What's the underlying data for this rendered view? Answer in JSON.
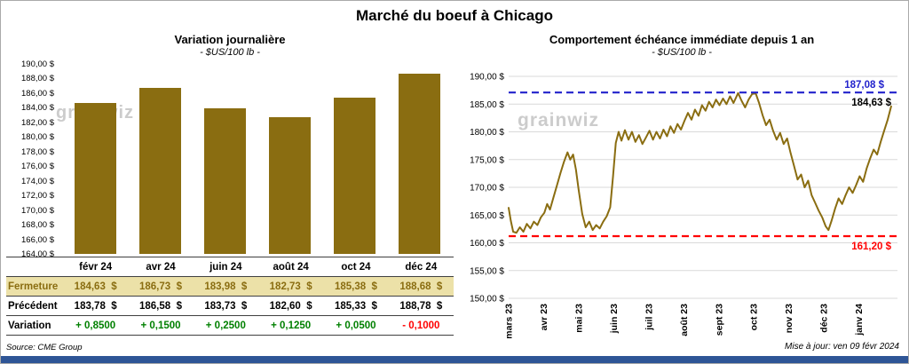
{
  "title": "Marché du boeuf à Chicago",
  "watermark": "grainwiz",
  "colors": {
    "gold": "#8a6d11",
    "fermeture_bg": "#ece1a8",
    "positive": "#008000",
    "negative": "#ff0000",
    "high_line": "#2222cc",
    "low_line": "#ff0000",
    "grid": "#d9d9d9",
    "watermark": "#cccccc",
    "bottom_bar": "#2e5596"
  },
  "left": {
    "title": "Variation journalière",
    "subtitle": "- $US/100 lb -",
    "source": "Source: CME Group",
    "table": {
      "header": [
        "févr 24",
        "avr 24",
        "juin 24",
        "août 24",
        "oct 24",
        "déc 24"
      ],
      "rows": [
        {
          "key": "fermeture",
          "label": "Fermeture",
          "bg": "#ece1a8",
          "color": "#8a6d11",
          "values": [
            "184,63  $",
            "186,73  $",
            "183,98  $",
            "182,73  $",
            "185,38  $",
            "188,68  $"
          ]
        },
        {
          "key": "precedent",
          "label": "Précédent",
          "values": [
            "183,78  $",
            "186,58  $",
            "183,73  $",
            "182,60  $",
            "185,33  $",
            "188,78  $"
          ]
        },
        {
          "key": "variation",
          "label": "Variation",
          "values": [
            "+ 0,8500",
            "+ 0,1500",
            "+ 0,2500",
            "+ 0,1250",
            "+ 0,0500",
            "- 0,1000"
          ],
          "value_colors": [
            "#008000",
            "#008000",
            "#008000",
            "#008000",
            "#008000",
            "#ff0000"
          ]
        }
      ]
    }
  },
  "right": {
    "title": "Comportement échéance immédiate depuis 1 an",
    "subtitle": "- $US/100 lb -",
    "updated": "Mise à jour: ven 09 févr 2024"
  },
  "chart_data": [
    {
      "type": "bar",
      "title": "Variation journalière",
      "unit": "$US/100 lb",
      "categories": [
        "févr 24",
        "avr 24",
        "juin 24",
        "août 24",
        "oct 24",
        "déc 24"
      ],
      "values": [
        184.63,
        186.73,
        183.98,
        182.73,
        185.38,
        188.68
      ],
      "ylim": [
        164,
        190
      ],
      "ytick_step": 2,
      "bar_color": "#8a6d11"
    },
    {
      "type": "line",
      "title": "Comportement échéance immédiate depuis 1 an",
      "unit": "$US/100 lb",
      "x_labels": [
        "mars 23",
        "avr 23",
        "mai 23",
        "juin 23",
        "juil 23",
        "août 23",
        "sept 23",
        "oct 23",
        "nov 23",
        "déc 23",
        "janv 24"
      ],
      "x_span": 11.1,
      "ylim": [
        150,
        190
      ],
      "ytick_step": 5,
      "line_color": "#8a6d11",
      "grid": true,
      "hlines": [
        {
          "name": "high-line",
          "value": 187.08,
          "color": "#2222cc",
          "label": "187,08 $",
          "label_position": "above"
        },
        {
          "name": "low-line",
          "value": 161.2,
          "color": "#ff0000",
          "label": "161,20 $",
          "label_position": "below"
        }
      ],
      "current_label": {
        "text": "184,63 $",
        "color": "#000000"
      },
      "points": [
        [
          0,
          166.3
        ],
        [
          0.06,
          164
        ],
        [
          0.13,
          162
        ],
        [
          0.22,
          161.8
        ],
        [
          0.32,
          162.8
        ],
        [
          0.42,
          162
        ],
        [
          0.52,
          163.4
        ],
        [
          0.62,
          162.6
        ],
        [
          0.72,
          163.8
        ],
        [
          0.82,
          163.2
        ],
        [
          0.92,
          164.6
        ],
        [
          1.02,
          165.4
        ],
        [
          1.1,
          167
        ],
        [
          1.18,
          166
        ],
        [
          1.28,
          168.2
        ],
        [
          1.38,
          170.4
        ],
        [
          1.48,
          172.6
        ],
        [
          1.58,
          174.6
        ],
        [
          1.68,
          176.3
        ],
        [
          1.76,
          175
        ],
        [
          1.84,
          175.9
        ],
        [
          1.92,
          173.2
        ],
        [
          2,
          169.5
        ],
        [
          2.1,
          165.2
        ],
        [
          2.2,
          162.8
        ],
        [
          2.3,
          163.8
        ],
        [
          2.4,
          162.3
        ],
        [
          2.5,
          163.2
        ],
        [
          2.6,
          162.6
        ],
        [
          2.7,
          163.8
        ],
        [
          2.8,
          164.8
        ],
        [
          2.9,
          166.4
        ],
        [
          2.98,
          172
        ],
        [
          3.06,
          178
        ],
        [
          3.14,
          180
        ],
        [
          3.22,
          178.4
        ],
        [
          3.32,
          180.3
        ],
        [
          3.42,
          178.6
        ],
        [
          3.52,
          180
        ],
        [
          3.62,
          178.2
        ],
        [
          3.72,
          179.4
        ],
        [
          3.82,
          177.8
        ],
        [
          3.92,
          179
        ],
        [
          4.02,
          180.2
        ],
        [
          4.12,
          178.6
        ],
        [
          4.22,
          180
        ],
        [
          4.32,
          178.8
        ],
        [
          4.42,
          180.4
        ],
        [
          4.52,
          179.2
        ],
        [
          4.62,
          181
        ],
        [
          4.72,
          179.8
        ],
        [
          4.82,
          181.4
        ],
        [
          4.92,
          180.4
        ],
        [
          5.02,
          182
        ],
        [
          5.12,
          183.4
        ],
        [
          5.22,
          182.2
        ],
        [
          5.32,
          184
        ],
        [
          5.42,
          182.9
        ],
        [
          5.52,
          184.8
        ],
        [
          5.62,
          183.8
        ],
        [
          5.72,
          185.4
        ],
        [
          5.82,
          184.4
        ],
        [
          5.92,
          185.8
        ],
        [
          6.02,
          184.8
        ],
        [
          6.12,
          186
        ],
        [
          6.22,
          185
        ],
        [
          6.32,
          186.4
        ],
        [
          6.42,
          185.2
        ],
        [
          6.55,
          187
        ],
        [
          6.65,
          185.6
        ],
        [
          6.75,
          184.4
        ],
        [
          6.85,
          185.8
        ],
        [
          6.95,
          186.8
        ],
        [
          7.05,
          187
        ],
        [
          7.15,
          185.2
        ],
        [
          7.25,
          183
        ],
        [
          7.35,
          181.2
        ],
        [
          7.45,
          182.2
        ],
        [
          7.55,
          180.2
        ],
        [
          7.65,
          178.6
        ],
        [
          7.75,
          179.8
        ],
        [
          7.85,
          177.8
        ],
        [
          7.95,
          178.8
        ],
        [
          8.05,
          176.2
        ],
        [
          8.15,
          173.8
        ],
        [
          8.25,
          171.4
        ],
        [
          8.35,
          172.3
        ],
        [
          8.45,
          170
        ],
        [
          8.55,
          171.2
        ],
        [
          8.65,
          168.6
        ],
        [
          8.75,
          167.2
        ],
        [
          8.85,
          165.8
        ],
        [
          8.95,
          164.6
        ],
        [
          9.05,
          163
        ],
        [
          9.13,
          162.3
        ],
        [
          9.22,
          164
        ],
        [
          9.32,
          166.2
        ],
        [
          9.42,
          168
        ],
        [
          9.52,
          167
        ],
        [
          9.62,
          168.6
        ],
        [
          9.72,
          170
        ],
        [
          9.82,
          169
        ],
        [
          9.92,
          170.4
        ],
        [
          10.02,
          172
        ],
        [
          10.12,
          171
        ],
        [
          10.22,
          173.4
        ],
        [
          10.32,
          175.2
        ],
        [
          10.42,
          176.8
        ],
        [
          10.52,
          175.9
        ],
        [
          10.62,
          178.2
        ],
        [
          10.72,
          180.2
        ],
        [
          10.82,
          182.2
        ],
        [
          10.92,
          184.6
        ]
      ]
    }
  ]
}
